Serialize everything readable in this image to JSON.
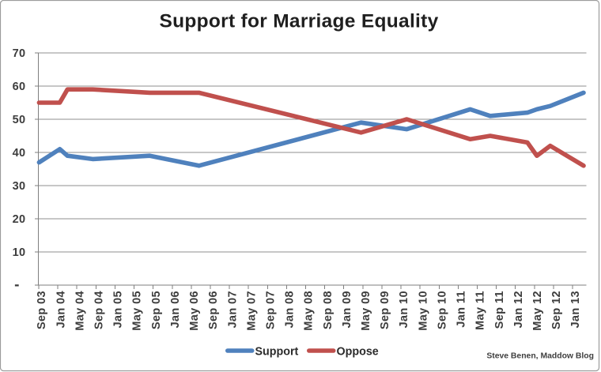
{
  "chart_data": {
    "type": "line",
    "title": "Support for Marriage Equality",
    "credit": "Steve Benen, Maddow Blog",
    "legend_position": "bottom-center",
    "grid": true,
    "colors": {
      "support": "#4F81BD",
      "oppose": "#C0504D",
      "gridline": "#8f8f8f",
      "axis": "#7f7f7f",
      "frame_border": "#9c9c9c"
    },
    "legend": [
      {
        "label": "Support",
        "color": "#4F81BD"
      },
      {
        "label": "Oppose",
        "color": "#C0504D"
      }
    ],
    "y_axis": {
      "min": 0,
      "max": 70,
      "tick_step": 10,
      "tick_labels": [
        "-",
        "10",
        "20",
        "30",
        "40",
        "50",
        "60",
        "70"
      ]
    },
    "x_axis": {
      "unit": "months",
      "tick_step_months": 4,
      "axis_span_months": 115,
      "tick_labels": [
        "Sep 03",
        "Jan 04",
        "May 04",
        "Sep 04",
        "Jan 05",
        "May 05",
        "Sep 05",
        "Jan 06",
        "May 06",
        "Sep 06",
        "Jan 07",
        "May 07",
        "Sep 07",
        "Jan 08",
        "May 08",
        "Sep 08",
        "Jan 09",
        "May 09",
        "Sep 09",
        "Jan 10",
        "May 10",
        "Sep 10",
        "Jan 11",
        "May 11",
        "Sep 11",
        "Jan 12",
        "May 12",
        "Sep 12",
        "Jan 13"
      ]
    },
    "series": [
      {
        "name": "Support",
        "color": "#4F81BD",
        "points": [
          {
            "label": "Sep 03",
            "m": 0.15,
            "v": 37
          },
          {
            "label": "Jan 04",
            "m": 4.5,
            "v": 41
          },
          {
            "label": "Mar 04",
            "m": 6.1,
            "v": 39
          },
          {
            "label": "Aug 04",
            "m": 11.4,
            "v": 38
          },
          {
            "label": "Aug 05",
            "m": 23.4,
            "v": 39
          },
          {
            "label": "Jun 06",
            "m": 33.7,
            "v": 36
          },
          {
            "label": "Apr 09",
            "m": 67.7,
            "v": 49
          },
          {
            "label": "Feb 10",
            "m": 77.3,
            "v": 47
          },
          {
            "label": "Mar 11",
            "m": 90.6,
            "v": 53
          },
          {
            "label": "Jul 11",
            "m": 94.8,
            "v": 51
          },
          {
            "label": "Mar 12",
            "m": 102.6,
            "v": 52
          },
          {
            "label": "May 12",
            "m": 104.6,
            "v": 53
          },
          {
            "label": "Aug 12",
            "m": 107.4,
            "v": 54
          },
          {
            "label": "Mar 13",
            "m": 114.4,
            "v": 58
          }
        ]
      },
      {
        "name": "Oppose",
        "color": "#C0504D",
        "points": [
          {
            "label": "Sep 03",
            "m": 0.15,
            "v": 55
          },
          {
            "label": "Jan 04",
            "m": 4.5,
            "v": 55
          },
          {
            "label": "Mar 04",
            "m": 6.1,
            "v": 59
          },
          {
            "label": "Aug 04",
            "m": 11.4,
            "v": 59
          },
          {
            "label": "Aug 05",
            "m": 23.4,
            "v": 58
          },
          {
            "label": "Jun 06",
            "m": 33.7,
            "v": 58
          },
          {
            "label": "Apr 09",
            "m": 67.7,
            "v": 46
          },
          {
            "label": "Feb 10",
            "m": 77.3,
            "v": 50
          },
          {
            "label": "Mar 11",
            "m": 90.6,
            "v": 44
          },
          {
            "label": "Jul 11",
            "m": 94.8,
            "v": 45
          },
          {
            "label": "Mar 12",
            "m": 102.6,
            "v": 43
          },
          {
            "label": "May 12",
            "m": 104.6,
            "v": 39
          },
          {
            "label": "Aug 12",
            "m": 107.4,
            "v": 42
          },
          {
            "label": "Mar 13",
            "m": 114.4,
            "v": 36
          }
        ]
      }
    ]
  }
}
